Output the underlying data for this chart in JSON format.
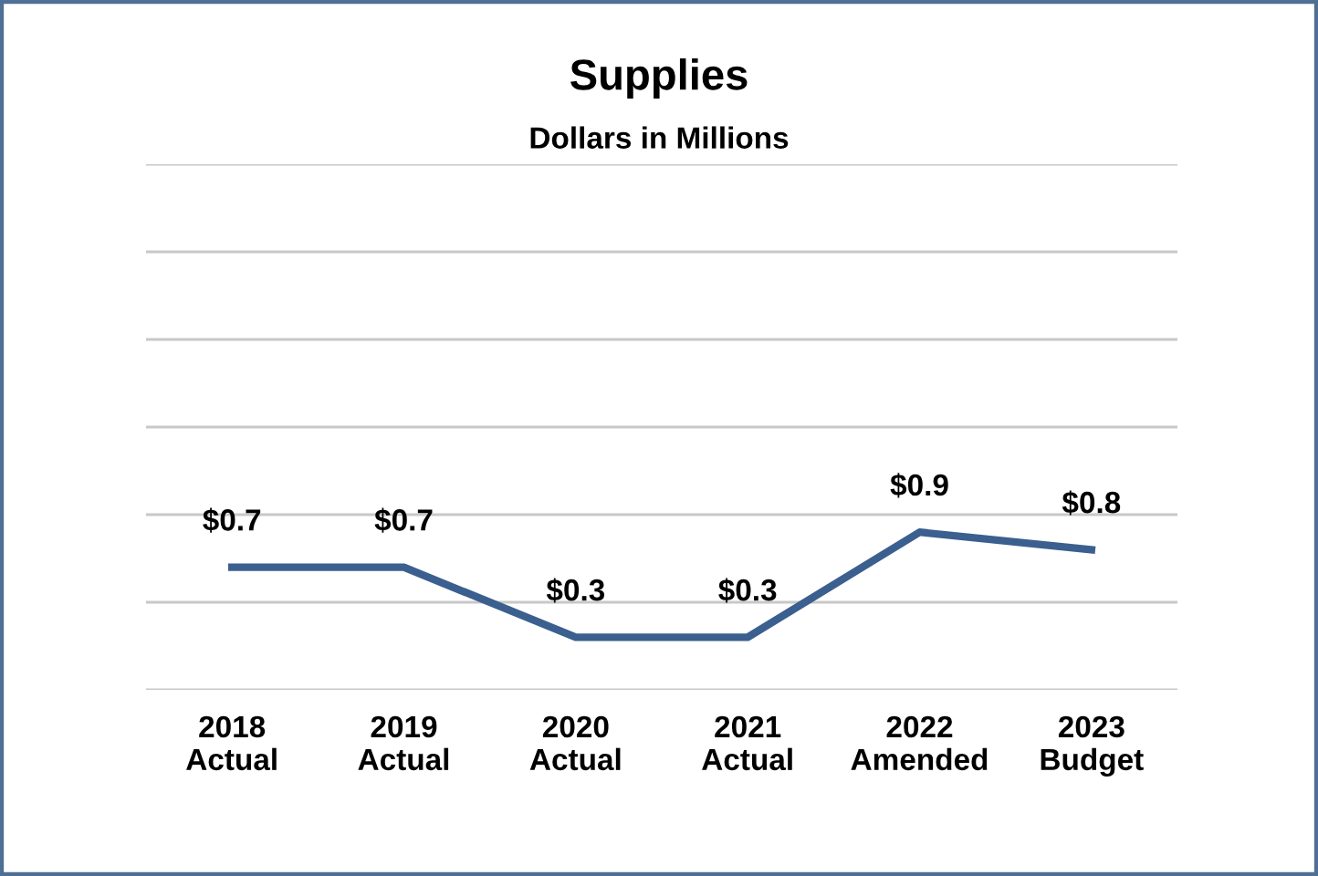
{
  "chart_data": {
    "type": "line",
    "title": "Supplies",
    "subtitle": "Dollars in Millions",
    "categories": [
      "2018\nActual",
      "2019\nActual",
      "2020\nActual",
      "2021\nActual",
      "2022\nAmended",
      "2023\nBudget"
    ],
    "series": [
      {
        "color": "#3b5f8e",
        "values": [
          0.7,
          0.7,
          0.3,
          0.3,
          0.9,
          0.8
        ],
        "value_labels": [
          "$0.7",
          "$0.7",
          "$0.3",
          "$0.3",
          "$0.9",
          "$0.8"
        ]
      }
    ],
    "ylim": [
      0,
      3.0
    ],
    "yticks": [
      {
        "value": 0,
        "label": null
      },
      {
        "value": 0.5,
        "label": null
      },
      {
        "value": 1.0,
        "label": null
      },
      {
        "value": 1.5,
        "label": null
      },
      {
        "value": 2.0,
        "label": null
      },
      {
        "value": 2.5,
        "label": null
      },
      {
        "value": 3.0,
        "label": null
      }
    ],
    "grid": "y",
    "tick_labels": "x",
    "marker": "none",
    "line_style": "solid",
    "legend": false
  }
}
